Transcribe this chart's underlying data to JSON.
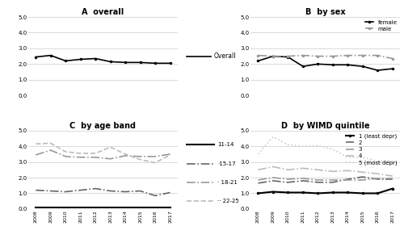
{
  "years": [
    2008,
    2009,
    2010,
    2011,
    2012,
    2013,
    2014,
    2015,
    2016,
    2017
  ],
  "overall": [
    2.45,
    2.55,
    2.2,
    2.3,
    2.35,
    2.15,
    2.1,
    2.1,
    2.05,
    2.05
  ],
  "female": [
    2.2,
    2.5,
    2.45,
    1.85,
    2.0,
    1.95,
    1.95,
    1.85,
    1.6,
    1.7
  ],
  "male": [
    2.55,
    2.5,
    2.5,
    2.55,
    2.5,
    2.5,
    2.55,
    2.55,
    2.55,
    2.35
  ],
  "age_11_14": [
    0.1,
    0.1,
    0.1,
    0.1,
    0.1,
    0.1,
    0.1,
    0.1,
    0.1,
    0.1
  ],
  "age_15_17": [
    1.2,
    1.15,
    1.1,
    1.2,
    1.3,
    1.15,
    1.1,
    1.15,
    0.85,
    1.05
  ],
  "age_18_21": [
    3.45,
    3.75,
    3.35,
    3.3,
    3.3,
    3.2,
    3.4,
    3.35,
    3.35,
    3.5
  ],
  "age_22_25": [
    4.15,
    4.2,
    3.65,
    3.55,
    3.55,
    3.95,
    3.5,
    3.15,
    2.95,
    3.45
  ],
  "wimd_1": [
    1.0,
    1.1,
    1.05,
    1.05,
    1.0,
    1.05,
    1.05,
    1.0,
    1.0,
    1.3
  ],
  "wimd_2": [
    1.65,
    1.8,
    1.7,
    1.8,
    1.7,
    1.7,
    1.9,
    2.05,
    1.9,
    1.9
  ],
  "wimd_3": [
    1.85,
    2.0,
    1.9,
    1.95,
    1.85,
    1.85,
    1.85,
    1.85,
    1.95,
    1.95
  ],
  "wimd_4": [
    2.5,
    2.7,
    2.5,
    2.6,
    2.5,
    2.4,
    2.45,
    2.35,
    2.25,
    2.1
  ],
  "wimd_5": [
    3.5,
    4.6,
    4.1,
    4.0,
    4.05,
    3.8,
    3.3,
    3.3,
    3.05,
    3.1
  ],
  "ylim": [
    0.0,
    5.0
  ],
  "yticks": [
    0.0,
    1.0,
    2.0,
    3.0,
    4.0,
    5.0
  ],
  "color_black": "#000000",
  "color_dark_gray": "#666666",
  "color_mid_gray": "#999999",
  "color_light_gray": "#bbbbbb",
  "color_vlight_gray": "#cccccc",
  "bg": "#ffffff"
}
